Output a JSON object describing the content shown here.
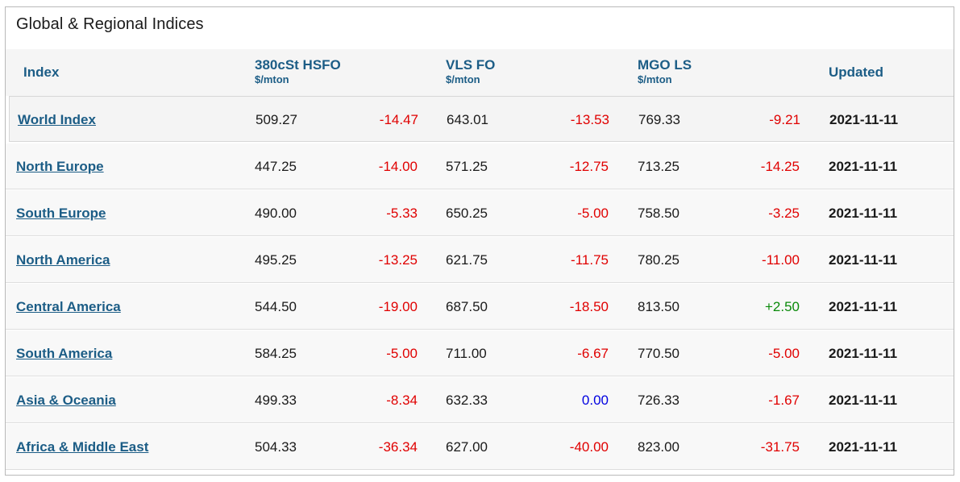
{
  "title": "Global & Regional Indices",
  "columns": {
    "index": "Index",
    "hsfo": {
      "label": "380cSt HSFO",
      "unit": "$/mton"
    },
    "vlsfo": {
      "label": "VLS FO",
      "unit": "$/mton"
    },
    "mgo": {
      "label": "MGO LS",
      "unit": "$/mton"
    },
    "updated": "Updated"
  },
  "rows": [
    {
      "name": "World Index",
      "hsfo": "509.27",
      "hsfo_chg": "-14.47",
      "vlsfo": "643.01",
      "vlsfo_chg": "-13.53",
      "mgo": "769.33",
      "mgo_chg": "-9.21",
      "updated": "2021-11-11"
    },
    {
      "name": "North Europe",
      "hsfo": "447.25",
      "hsfo_chg": "-14.00",
      "vlsfo": "571.25",
      "vlsfo_chg": "-12.75",
      "mgo": "713.25",
      "mgo_chg": "-14.25",
      "updated": "2021-11-11"
    },
    {
      "name": "South Europe",
      "hsfo": "490.00",
      "hsfo_chg": "-5.33",
      "vlsfo": "650.25",
      "vlsfo_chg": "-5.00",
      "mgo": "758.50",
      "mgo_chg": "-3.25",
      "updated": "2021-11-11"
    },
    {
      "name": "North America",
      "hsfo": "495.25",
      "hsfo_chg": "-13.25",
      "vlsfo": "621.75",
      "vlsfo_chg": "-11.75",
      "mgo": "780.25",
      "mgo_chg": "-11.00",
      "updated": "2021-11-11"
    },
    {
      "name": "Central America",
      "hsfo": "544.50",
      "hsfo_chg": "-19.00",
      "vlsfo": "687.50",
      "vlsfo_chg": "-18.50",
      "mgo": "813.50",
      "mgo_chg": "+2.50",
      "updated": "2021-11-11"
    },
    {
      "name": "South America",
      "hsfo": "584.25",
      "hsfo_chg": "-5.00",
      "vlsfo": "711.00",
      "vlsfo_chg": "-6.67",
      "mgo": "770.50",
      "mgo_chg": "-5.00",
      "updated": "2021-11-11"
    },
    {
      "name": "Asia & Oceania",
      "hsfo": "499.33",
      "hsfo_chg": "-8.34",
      "vlsfo": "632.33",
      "vlsfo_chg": "0.00",
      "mgo": "726.33",
      "mgo_chg": "-1.67",
      "updated": "2021-11-11"
    },
    {
      "name": "Africa & Middle East",
      "hsfo": "504.33",
      "hsfo_chg": "-36.34",
      "vlsfo": "627.00",
      "vlsfo_chg": "-40.00",
      "mgo": "823.00",
      "mgo_chg": "-31.75",
      "updated": "2021-11-11"
    }
  ],
  "colors": {
    "negative": "#e00000",
    "positive": "#0a8a0a",
    "zero": "#0000e0",
    "link": "#1c5d86"
  }
}
